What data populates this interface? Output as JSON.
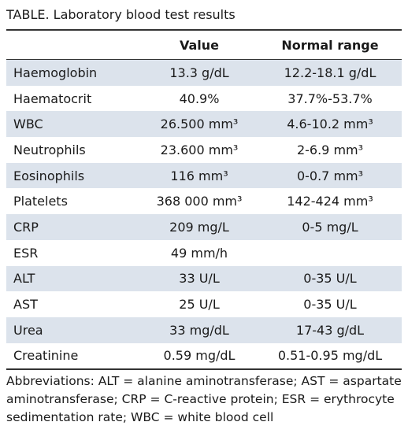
{
  "title": "TABLE.  Laboratory blood test results",
  "table": {
    "header": [
      "",
      "Value",
      "Normal range"
    ],
    "rows": [
      [
        "Haemoglobin",
        "13.3 g/dL",
        "12.2-18.1 g/dL"
      ],
      [
        "Haematocrit",
        "40.9%",
        "37.7%-53.7%"
      ],
      [
        "WBC",
        "26.500 mm³",
        "4.6-10.2 mm³"
      ],
      [
        "Neutrophils",
        "23.600 mm³",
        "2-6.9 mm³"
      ],
      [
        "Eosinophils",
        "116 mm³",
        "0-0.7 mm³"
      ],
      [
        "Platelets",
        "368 000 mm³",
        "142-424 mm³"
      ],
      [
        "CRP",
        "209 mg/L",
        "0-5 mg/L"
      ],
      [
        "ESR",
        "49 mm/h",
        ""
      ],
      [
        "ALT",
        "33 U/L",
        "0-35 U/L"
      ],
      [
        "AST",
        "25 U/L",
        "0-35 U/L"
      ],
      [
        "Urea",
        "33 mg/dL",
        "17-43 g/dL"
      ],
      [
        "Creatinine",
        "0.59 mg/dL",
        "0.51-0.95 mg/dL"
      ]
    ]
  },
  "footnote": "Abbreviations: ALT = alanine aminotransferase; AST = aspartate aminotransferase; CRP = C-reactive protein; ESR = erythrocyte sedimentation rate; WBC = white blood cell"
}
